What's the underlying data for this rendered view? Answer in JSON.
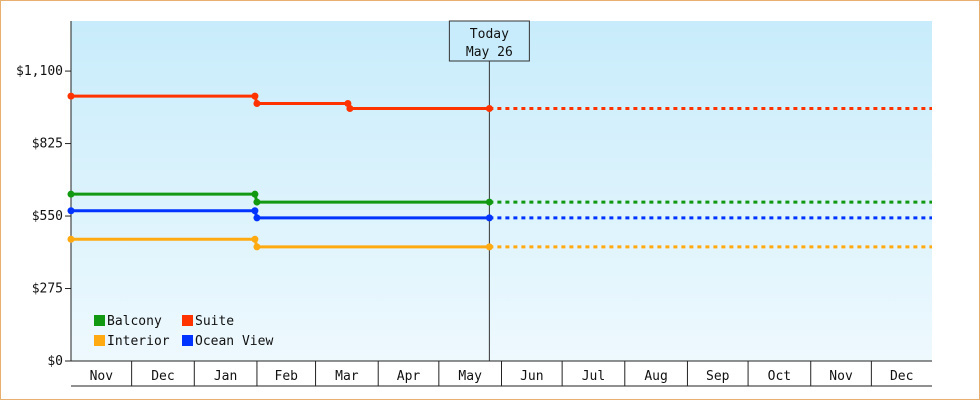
{
  "chart_data": {
    "type": "line",
    "title": "",
    "xlabel": "",
    "ylabel": "",
    "x_axis": {
      "start": "2015-11-01",
      "end": "2016-12-31",
      "months": [
        {
          "label": "Nov",
          "start": "2015-11-01"
        },
        {
          "label": "Dec",
          "start": "2015-12-01"
        },
        {
          "label": "Jan",
          "start": "2016-01-01"
        },
        {
          "label": "Feb",
          "start": "2016-02-01"
        },
        {
          "label": "Mar",
          "start": "2016-03-01"
        },
        {
          "label": "Apr",
          "start": "2016-04-01"
        },
        {
          "label": "May",
          "start": "2016-05-01"
        },
        {
          "label": "Jun",
          "start": "2016-06-01"
        },
        {
          "label": "Jul",
          "start": "2016-07-01"
        },
        {
          "label": "Aug",
          "start": "2016-08-01"
        },
        {
          "label": "Sep",
          "start": "2016-09-01"
        },
        {
          "label": "Oct",
          "start": "2016-10-01"
        },
        {
          "label": "Nov",
          "start": "2016-11-01"
        },
        {
          "label": "Dec",
          "start": "2016-12-01"
        }
      ]
    },
    "y_axis": {
      "min": 0,
      "max": 1290,
      "ticks": [
        {
          "value": 0,
          "label": "$0"
        },
        {
          "value": 275,
          "label": "$275"
        },
        {
          "value": 550,
          "label": "$550"
        },
        {
          "value": 825,
          "label": "$825"
        },
        {
          "value": 1100,
          "label": "$1,100"
        }
      ]
    },
    "grid": false,
    "today": {
      "date": "2016-05-26",
      "line1": "Today",
      "line2": "May 26"
    },
    "series": [
      {
        "name": "Suite",
        "color": "#ff3300",
        "points": [
          {
            "date": "2015-11-01",
            "value": 1005
          },
          {
            "date": "2016-01-31",
            "value": 1005
          },
          {
            "date": "2016-02-01",
            "value": 977
          },
          {
            "date": "2016-03-17",
            "value": 977
          },
          {
            "date": "2016-03-18",
            "value": 958
          },
          {
            "date": "2016-05-26",
            "value": 958
          }
        ],
        "projection_end": "2016-12-31"
      },
      {
        "name": "Balcony",
        "color": "#119911",
        "points": [
          {
            "date": "2015-11-01",
            "value": 633
          },
          {
            "date": "2016-01-31",
            "value": 633
          },
          {
            "date": "2016-02-01",
            "value": 603
          },
          {
            "date": "2016-05-26",
            "value": 603
          }
        ],
        "projection_end": "2016-12-31"
      },
      {
        "name": "Ocean View",
        "color": "#0033ff",
        "points": [
          {
            "date": "2015-11-01",
            "value": 570
          },
          {
            "date": "2016-01-31",
            "value": 570
          },
          {
            "date": "2016-02-01",
            "value": 543
          },
          {
            "date": "2016-05-26",
            "value": 543
          }
        ],
        "projection_end": "2016-12-31"
      },
      {
        "name": "Interior",
        "color": "#ffaa11",
        "points": [
          {
            "date": "2015-11-01",
            "value": 462
          },
          {
            "date": "2016-01-31",
            "value": 462
          },
          {
            "date": "2016-02-01",
            "value": 433
          },
          {
            "date": "2016-05-26",
            "value": 433
          }
        ],
        "projection_end": "2016-12-31"
      }
    ],
    "legend": {
      "placement": "bottom-left",
      "rows": [
        [
          {
            "name": "Balcony",
            "color": "#119911"
          },
          {
            "name": "Suite",
            "color": "#ff3300"
          }
        ],
        [
          {
            "name": "Interior",
            "color": "#ffaa11"
          },
          {
            "name": "Ocean View",
            "color": "#0033ff"
          }
        ]
      ]
    }
  }
}
